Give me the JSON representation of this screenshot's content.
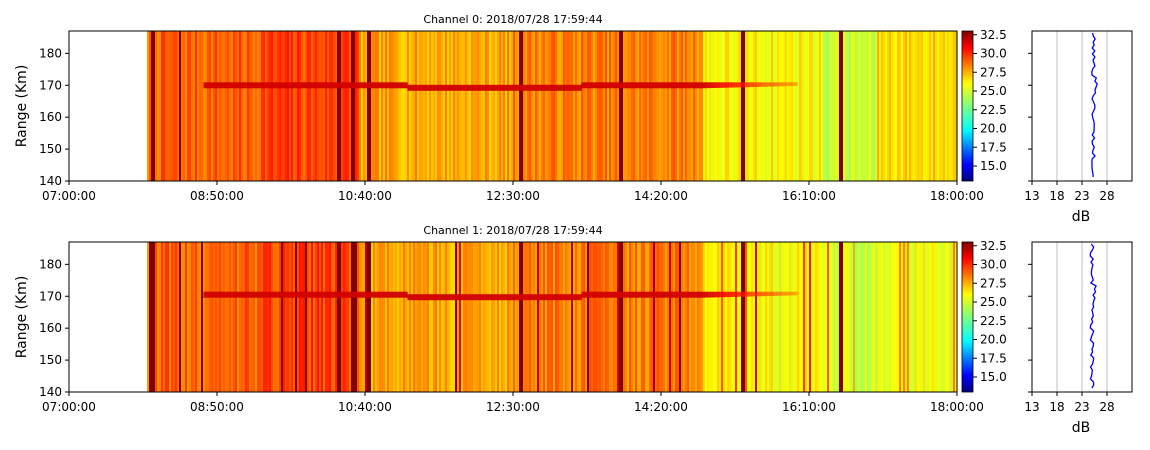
{
  "chart_data": [
    {
      "type": "heatmap",
      "title": "Channel 0: 2018/07/28 17:59:44",
      "ylabel": "Range (Km)",
      "x_ticks": [
        "07:00:00",
        "08:50:00",
        "10:40:00",
        "12:30:00",
        "14:20:00",
        "16:10:00",
        "18:00:00"
      ],
      "y_ticks": [
        "140",
        "150",
        "160",
        "170",
        "180"
      ],
      "ylim": [
        140,
        187
      ],
      "xlim_minutes": [
        0,
        660
      ],
      "data_start_minute": 58,
      "layer_range_km": 170,
      "layer_end_minute": 540,
      "colorbar": {
        "ticks": [
          "15.0",
          "17.5",
          "20.0",
          "22.5",
          "25.0",
          "27.5",
          "30.0",
          "32.5"
        ],
        "vmin": 13,
        "vmax": 33
      },
      "profile": {
        "xlabel": "dB",
        "x_ticks": [
          "13",
          "18",
          "23",
          "28"
        ],
        "xlim": [
          13,
          33
        ],
        "mean_db": 25.3,
        "color": "#0000ff"
      }
    },
    {
      "type": "heatmap",
      "title": "Channel 1: 2018/07/28 17:59:44",
      "ylabel": "Range (Km)",
      "x_ticks": [
        "07:00:00",
        "08:50:00",
        "10:40:00",
        "12:30:00",
        "14:20:00",
        "16:10:00",
        "18:00:00"
      ],
      "y_ticks": [
        "140",
        "150",
        "160",
        "170",
        "180"
      ],
      "ylim": [
        140,
        187
      ],
      "xlim_minutes": [
        0,
        660
      ],
      "data_start_minute": 58,
      "layer_range_km": 170.5,
      "layer_end_minute": 540,
      "colorbar": {
        "ticks": [
          "15.0",
          "17.5",
          "20.0",
          "22.5",
          "25.0",
          "27.5",
          "30.0",
          "32.5"
        ],
        "vmin": 13,
        "vmax": 33
      },
      "profile": {
        "xlabel": "dB",
        "x_ticks": [
          "13",
          "18",
          "23",
          "28"
        ],
        "xlim": [
          13,
          33
        ],
        "mean_db": 25.0,
        "color": "#0000ff"
      }
    }
  ]
}
